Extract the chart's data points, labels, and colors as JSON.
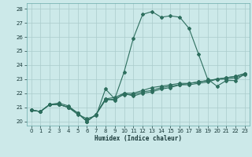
{
  "title": "",
  "xlabel": "Humidex (Indice chaleur)",
  "background_color": "#cce9e9",
  "grid_color": "#aacccc",
  "line_color": "#2d6e5e",
  "xlim": [
    -0.5,
    23.5
  ],
  "ylim": [
    19.7,
    28.4
  ],
  "xtick_labels": [
    "0",
    "1",
    "2",
    "3",
    "4",
    "5",
    "6",
    "7",
    "8",
    "9",
    "10",
    "11",
    "12",
    "13",
    "14",
    "15",
    "16",
    "17",
    "18",
    "19",
    "20",
    "21",
    "22",
    "23"
  ],
  "ytick_labels": [
    "20",
    "21",
    "22",
    "23",
    "24",
    "25",
    "26",
    "27",
    "28"
  ],
  "ytick_values": [
    20,
    21,
    22,
    23,
    24,
    25,
    26,
    27,
    28
  ],
  "line1": [
    20.8,
    20.7,
    21.2,
    21.2,
    21.0,
    20.5,
    20.2,
    20.4,
    22.3,
    21.6,
    23.5,
    25.9,
    27.6,
    27.8,
    27.4,
    27.5,
    27.4,
    26.6,
    24.8,
    23.0,
    22.5,
    22.9,
    22.9,
    23.4
  ],
  "line2": [
    20.8,
    20.7,
    21.2,
    21.2,
    21.0,
    20.6,
    20.0,
    20.5,
    21.6,
    21.5,
    22.0,
    21.8,
    22.0,
    22.1,
    22.3,
    22.4,
    22.6,
    22.7,
    22.8,
    22.9,
    23.0,
    23.1,
    23.2,
    23.4
  ],
  "line3": [
    20.8,
    20.7,
    21.2,
    21.2,
    21.0,
    20.6,
    20.0,
    20.5,
    21.6,
    21.7,
    22.0,
    22.0,
    22.2,
    22.4,
    22.5,
    22.6,
    22.7,
    22.7,
    22.8,
    22.9,
    23.0,
    23.1,
    23.2,
    23.4
  ],
  "line4": [
    20.8,
    20.7,
    21.2,
    21.3,
    21.1,
    20.6,
    20.0,
    20.5,
    21.5,
    21.6,
    21.9,
    21.9,
    22.1,
    22.2,
    22.4,
    22.5,
    22.6,
    22.6,
    22.7,
    22.8,
    23.0,
    23.0,
    23.1,
    23.3
  ]
}
